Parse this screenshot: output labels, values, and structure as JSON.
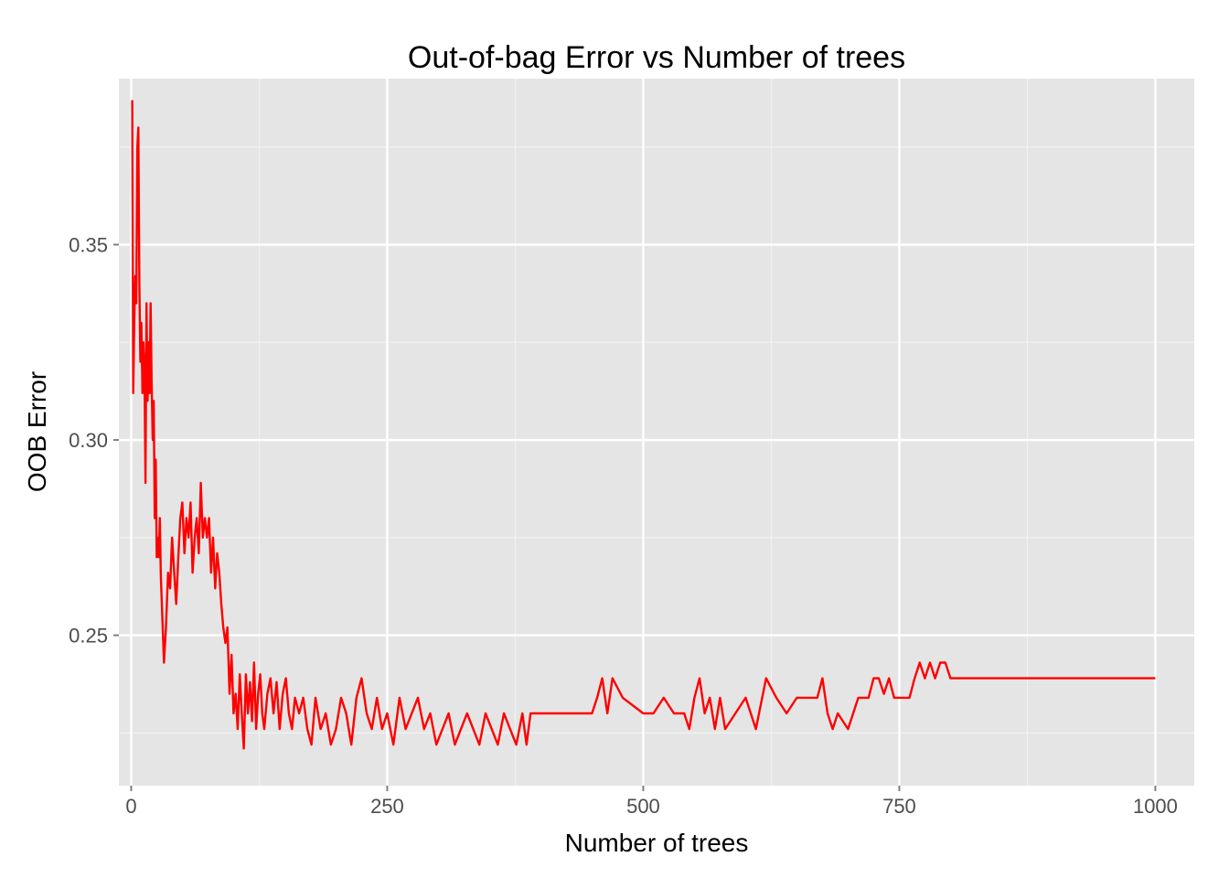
{
  "chart_data": {
    "type": "line",
    "title": "Out-of-bag Error vs Number of trees",
    "xlabel": "Number of trees",
    "ylabel": "OOB Error",
    "xlim": [
      -12,
      1038
    ],
    "ylim": [
      0.2115,
      0.3925
    ],
    "x_ticks": [
      0,
      250,
      500,
      750,
      1000
    ],
    "x_tick_labels": [
      "0",
      "250",
      "500",
      "750",
      "1000"
    ],
    "y_ticks": [
      0.25,
      0.3,
      0.35
    ],
    "y_tick_labels": [
      "0.25",
      "0.30",
      "0.35"
    ],
    "grid": true,
    "legend": "none",
    "series": [
      {
        "color": "#ff0000",
        "x": [
          1,
          2,
          3,
          4,
          5,
          6,
          7,
          8,
          9,
          10,
          11,
          12,
          13,
          14,
          15,
          16,
          17,
          18,
          19,
          20,
          21,
          22,
          23,
          24,
          25,
          26,
          27,
          28,
          29,
          30,
          32,
          34,
          36,
          38,
          40,
          42,
          44,
          46,
          48,
          50,
          52,
          54,
          56,
          58,
          60,
          62,
          64,
          66,
          68,
          70,
          72,
          74,
          76,
          78,
          80,
          82,
          84,
          86,
          88,
          90,
          92,
          94,
          96,
          98,
          100,
          102,
          104,
          106,
          108,
          110,
          112,
          114,
          116,
          118,
          120,
          122,
          124,
          126,
          128,
          130,
          133,
          136,
          139,
          142,
          145,
          148,
          151,
          154,
          157,
          160,
          164,
          168,
          172,
          176,
          180,
          185,
          190,
          195,
          200,
          205,
          210,
          215,
          220,
          225,
          230,
          235,
          240,
          245,
          250,
          256,
          262,
          268,
          274,
          280,
          286,
          292,
          298,
          304,
          310,
          316,
          322,
          328,
          334,
          340,
          346,
          352,
          358,
          364,
          370,
          376,
          382,
          386,
          390,
          400,
          420,
          440,
          450,
          455,
          460,
          465,
          470,
          480,
          500,
          510,
          520,
          530,
          540,
          545,
          550,
          555,
          560,
          565,
          570,
          575,
          580,
          590,
          600,
          610,
          620,
          630,
          640,
          650,
          660,
          665,
          670,
          675,
          680,
          685,
          690,
          700,
          710,
          720,
          725,
          730,
          735,
          740,
          745,
          750,
          760,
          765,
          770,
          775,
          780,
          785,
          790,
          795,
          800,
          850,
          900,
          950,
          1000
        ],
        "y": [
          0.387,
          0.312,
          0.33,
          0.342,
          0.335,
          0.375,
          0.38,
          0.34,
          0.32,
          0.33,
          0.312,
          0.325,
          0.318,
          0.289,
          0.335,
          0.31,
          0.325,
          0.312,
          0.335,
          0.315,
          0.3,
          0.31,
          0.28,
          0.295,
          0.27,
          0.275,
          0.27,
          0.28,
          0.265,
          0.258,
          0.243,
          0.252,
          0.266,
          0.262,
          0.275,
          0.266,
          0.258,
          0.27,
          0.28,
          0.284,
          0.271,
          0.28,
          0.275,
          0.284,
          0.266,
          0.275,
          0.28,
          0.271,
          0.289,
          0.275,
          0.28,
          0.275,
          0.28,
          0.266,
          0.275,
          0.262,
          0.271,
          0.266,
          0.258,
          0.252,
          0.248,
          0.252,
          0.235,
          0.245,
          0.23,
          0.235,
          0.226,
          0.24,
          0.23,
          0.221,
          0.24,
          0.23,
          0.238,
          0.228,
          0.243,
          0.226,
          0.235,
          0.24,
          0.23,
          0.226,
          0.235,
          0.239,
          0.23,
          0.238,
          0.226,
          0.235,
          0.239,
          0.23,
          0.226,
          0.234,
          0.23,
          0.234,
          0.226,
          0.222,
          0.234,
          0.226,
          0.23,
          0.222,
          0.226,
          0.234,
          0.23,
          0.222,
          0.234,
          0.239,
          0.23,
          0.226,
          0.234,
          0.226,
          0.23,
          0.222,
          0.234,
          0.226,
          0.23,
          0.234,
          0.226,
          0.23,
          0.222,
          0.226,
          0.23,
          0.222,
          0.226,
          0.23,
          0.226,
          0.222,
          0.23,
          0.226,
          0.222,
          0.23,
          0.226,
          0.222,
          0.23,
          0.222,
          0.23,
          0.23,
          0.23,
          0.23,
          0.23,
          0.234,
          0.239,
          0.23,
          0.239,
          0.234,
          0.23,
          0.23,
          0.234,
          0.23,
          0.23,
          0.226,
          0.234,
          0.239,
          0.23,
          0.234,
          0.226,
          0.234,
          0.226,
          0.23,
          0.234,
          0.226,
          0.239,
          0.234,
          0.23,
          0.234,
          0.234,
          0.234,
          0.234,
          0.239,
          0.23,
          0.226,
          0.23,
          0.226,
          0.234,
          0.234,
          0.239,
          0.239,
          0.235,
          0.239,
          0.234,
          0.234,
          0.234,
          0.239,
          0.243,
          0.239,
          0.243,
          0.239,
          0.243,
          0.243,
          0.239,
          0.239,
          0.239,
          0.239,
          0.239
        ]
      }
    ]
  }
}
